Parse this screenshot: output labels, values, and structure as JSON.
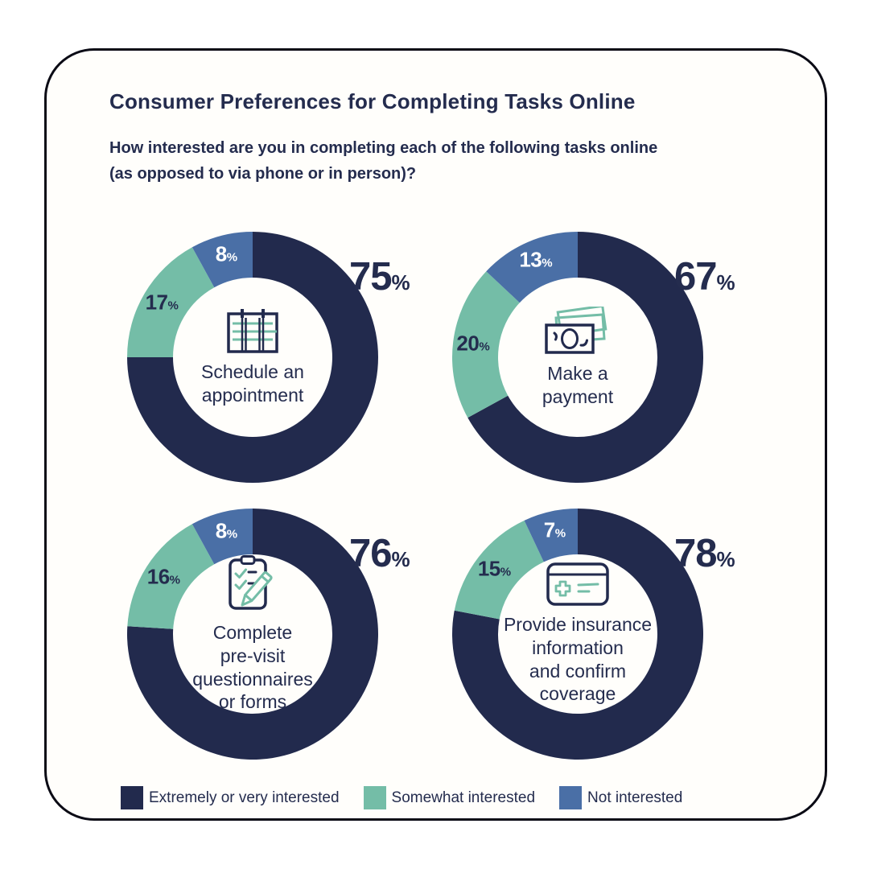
{
  "pct_symbol": "%",
  "header": {
    "title": "Consumer Preferences for Completing Tasks Online",
    "subtitle": "How interested are you in completing each of the following tasks online\n(as opposed to via phone or in person)?"
  },
  "colors": {
    "navy": "#222A4D",
    "teal": "#74BDA7",
    "blue": "#4A6FA6",
    "text": "#242C4E",
    "card_bg": "#FFFEFB",
    "card_border": "#0B0B15"
  },
  "legend": {
    "position": "bottom",
    "items": [
      {
        "label": "Extremely or very interested",
        "color_key": "navy"
      },
      {
        "label": "Somewhat interested",
        "color_key": "teal"
      },
      {
        "label": "Not interested",
        "color_key": "blue"
      }
    ]
  },
  "chart_data": [
    {
      "type": "pie",
      "donut": true,
      "title": "Schedule an appointment",
      "center_label": "Schedule an\nappointment",
      "icon": "calendar-icon",
      "categories": [
        "Extremely or very interested",
        "Somewhat interested",
        "Not interested"
      ],
      "values": [
        75,
        17,
        8
      ],
      "value_suffix": "%"
    },
    {
      "type": "pie",
      "donut": true,
      "title": "Make a payment",
      "center_label": "Make a\npayment",
      "icon": "banknotes-icon",
      "categories": [
        "Extremely or very interested",
        "Somewhat interested",
        "Not interested"
      ],
      "values": [
        67,
        20,
        13
      ],
      "value_suffix": "%"
    },
    {
      "type": "pie",
      "donut": true,
      "title": "Complete pre-visit questionnaires or forms",
      "center_label": "Complete\npre-visit\nquestionnaires\nor forms",
      "icon": "clipboard-pencil-icon",
      "categories": [
        "Extremely or very interested",
        "Somewhat interested",
        "Not interested"
      ],
      "values": [
        76,
        16,
        8
      ],
      "value_suffix": "%"
    },
    {
      "type": "pie",
      "donut": true,
      "title": "Provide insurance information and confirm coverage",
      "center_label": "Provide insurance\ninformation\nand confirm\ncoverage",
      "icon": "insurance-card-icon",
      "categories": [
        "Extremely or very interested",
        "Somewhat interested",
        "Not interested"
      ],
      "values": [
        78,
        15,
        7
      ],
      "value_suffix": "%"
    }
  ]
}
